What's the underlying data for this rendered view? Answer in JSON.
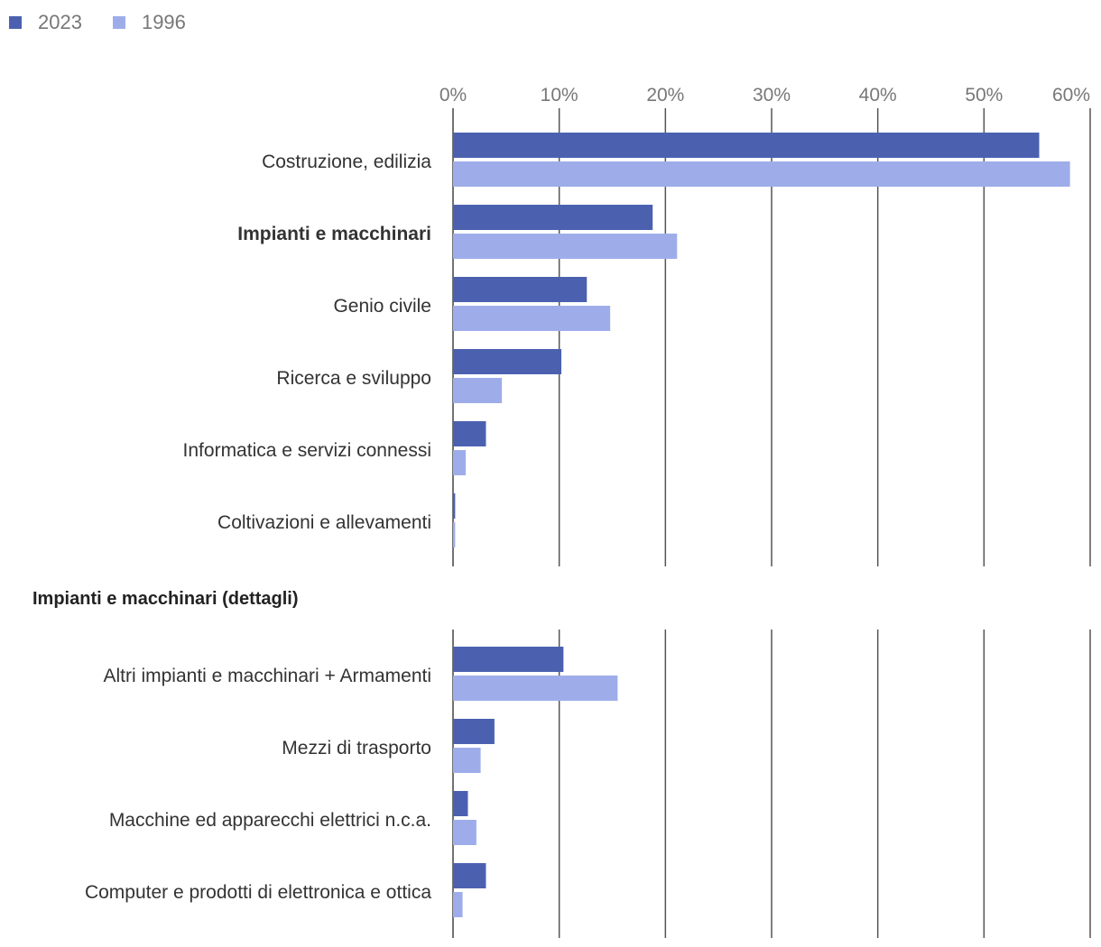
{
  "legend": [
    {
      "name": "2023",
      "color": "#4b61b0"
    },
    {
      "name": "1996",
      "color": "#9eadea"
    }
  ],
  "chart_data": [
    {
      "type": "bar",
      "orientation": "horizontal",
      "title": "",
      "xlim": [
        0,
        60
      ],
      "xticks": [
        "0%",
        "10%",
        "20%",
        "30%",
        "40%",
        "50%",
        "60%"
      ],
      "grid": true,
      "categories": [
        "Costruzione, edilizia",
        "Impianti e macchinari",
        "Genio civile",
        "Ricerca e sviluppo",
        "Informatica e servizi connessi",
        "Coltivazioni e allevamenti"
      ],
      "bold_categories": [
        "Impianti e macchinari"
      ],
      "series": [
        {
          "name": "2023",
          "color": "#4b61b0",
          "values": [
            55.2,
            18.8,
            12.6,
            10.2,
            3.1,
            0.2
          ]
        },
        {
          "name": "1996",
          "color": "#9eadea",
          "values": [
            58.1,
            21.1,
            14.8,
            4.6,
            1.2,
            0.2
          ]
        }
      ]
    },
    {
      "type": "bar",
      "orientation": "horizontal",
      "title": "Impianti e macchinari (dettagli)",
      "xlim": [
        0,
        60
      ],
      "grid": true,
      "categories": [
        "Altri impianti e macchinari + Armamenti",
        "Mezzi di trasporto",
        "Macchine ed apparecchi elettrici n.c.a.",
        "Computer e prodotti di elettronica e ottica"
      ],
      "series": [
        {
          "name": "2023",
          "color": "#4b61b0",
          "values": [
            10.4,
            3.9,
            1.4,
            3.1
          ]
        },
        {
          "name": "1996",
          "color": "#9eadea",
          "values": [
            15.5,
            2.6,
            2.2,
            0.9
          ]
        }
      ]
    }
  ]
}
